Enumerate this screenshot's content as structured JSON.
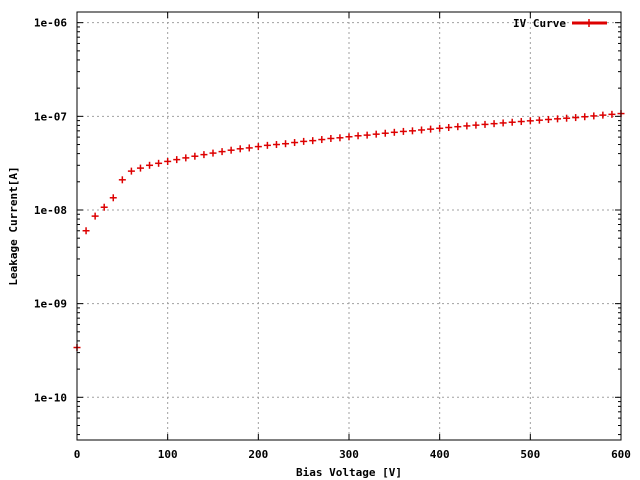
{
  "chart_data": {
    "type": "scatter",
    "title": "",
    "xlabel": "Bias Voltage [V]",
    "ylabel": "Leakage Current[A]",
    "xlim": [
      0,
      600
    ],
    "ylim": [
      3.5e-11,
      1.3e-06
    ],
    "yscale": "log",
    "grid": true,
    "legend_position": "top-right",
    "x_ticks": [
      0,
      100,
      200,
      300,
      400,
      500,
      600
    ],
    "x_tick_labels": [
      "0",
      "100",
      "200",
      "300",
      "400",
      "500",
      "600"
    ],
    "y_ticks": [
      1e-10,
      1e-09,
      1e-08,
      1e-07,
      1e-06
    ],
    "y_tick_labels": [
      "1e-10",
      "1e-09",
      "1e-08",
      "1e-07",
      "1e-06"
    ],
    "series": [
      {
        "name": "IV Curve",
        "color": "#dd0000",
        "marker": "plus",
        "x": [
          0,
          10,
          20,
          30,
          40,
          50,
          60,
          70,
          80,
          90,
          100,
          110,
          120,
          130,
          140,
          150,
          160,
          170,
          180,
          190,
          200,
          210,
          220,
          230,
          240,
          250,
          260,
          270,
          280,
          290,
          300,
          310,
          320,
          330,
          340,
          350,
          360,
          370,
          380,
          390,
          400,
          410,
          420,
          430,
          440,
          450,
          460,
          470,
          480,
          490,
          500,
          510,
          520,
          530,
          540,
          550,
          560,
          570,
          580,
          590,
          600
        ],
        "y": [
          3.4e-10,
          6e-09,
          8.6e-09,
          1.07e-08,
          1.35e-08,
          2.1e-08,
          2.6e-08,
          2.8e-08,
          3e-08,
          3.15e-08,
          3.3e-08,
          3.45e-08,
          3.6e-08,
          3.75e-08,
          3.9e-08,
          4.05e-08,
          4.2e-08,
          4.35e-08,
          4.5e-08,
          4.6e-08,
          4.75e-08,
          4.9e-08,
          5e-08,
          5.1e-08,
          5.25e-08,
          5.4e-08,
          5.5e-08,
          5.65e-08,
          5.8e-08,
          5.9e-08,
          6.05e-08,
          6.2e-08,
          6.3e-08,
          6.45e-08,
          6.6e-08,
          6.75e-08,
          6.9e-08,
          7e-08,
          7.15e-08,
          7.3e-08,
          7.45e-08,
          7.6e-08,
          7.75e-08,
          7.9e-08,
          8.05e-08,
          8.2e-08,
          8.35e-08,
          8.5e-08,
          8.65e-08,
          8.8e-08,
          8.95e-08,
          9.1e-08,
          9.25e-08,
          9.4e-08,
          9.55e-08,
          9.7e-08,
          9.9e-08,
          1.01e-07,
          1.03e-07,
          1.05e-07,
          1.07e-07
        ]
      }
    ]
  }
}
